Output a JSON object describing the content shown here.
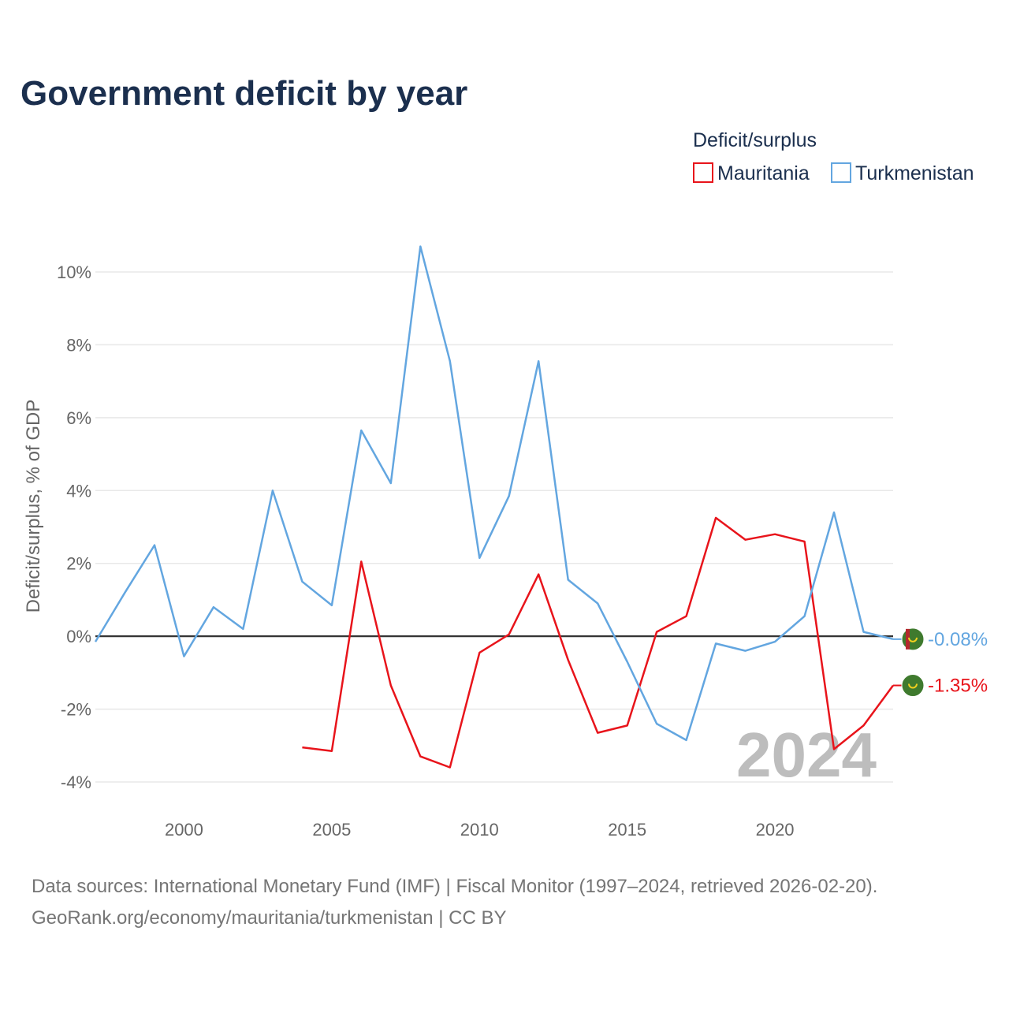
{
  "title": "Government deficit by year",
  "legend": {
    "title": "Deficit/surplus",
    "items": [
      {
        "name": "Mauritania",
        "color": "#e8141b"
      },
      {
        "name": "Turkmenistan",
        "color": "#63a6e0"
      }
    ]
  },
  "year_marker": "2024",
  "source": {
    "line1": "Data sources: International Monetary Fund (IMF) | Fiscal Monitor (1997–2024, retrieved 2026-02-20).",
    "line2": "GeoRank.org/economy/mauritania/turkmenistan | CC BY"
  },
  "chart_data": {
    "type": "line",
    "title": "Government deficit by year",
    "xlabel": "",
    "ylabel": "Deficit/surplus, % of GDP",
    "xlim": [
      1997,
      2024
    ],
    "ylim": [
      -4.6,
      10.8
    ],
    "x_ticks": [
      2000,
      2005,
      2010,
      2015,
      2020
    ],
    "y_ticks": [
      {
        "value": 10,
        "label": "10%"
      },
      {
        "value": 8,
        "label": "8%"
      },
      {
        "value": 6,
        "label": "6%"
      },
      {
        "value": 4,
        "label": "4%"
      },
      {
        "value": 2,
        "label": "2%"
      },
      {
        "value": 0,
        "label": "0%"
      },
      {
        "value": -2,
        "label": "-2%"
      },
      {
        "value": -4,
        "label": "-4%"
      }
    ],
    "series": [
      {
        "name": "Mauritania",
        "color": "#e8141b",
        "x": [
          2004,
          2005,
          2006,
          2007,
          2008,
          2009,
          2010,
          2011,
          2012,
          2013,
          2014,
          2015,
          2016,
          2017,
          2018,
          2019,
          2020,
          2021,
          2022,
          2023,
          2024
        ],
        "values": [
          -3.05,
          -3.15,
          2.05,
          -1.35,
          -3.3,
          -3.6,
          -0.45,
          0.05,
          1.7,
          -0.65,
          -2.65,
          -2.45,
          0.12,
          0.55,
          3.25,
          2.65,
          2.8,
          2.6,
          -3.1,
          -2.45,
          -1.35
        ],
        "end_label": "-1.35%"
      },
      {
        "name": "Turkmenistan",
        "color": "#63a6e0",
        "x": [
          1997,
          1998,
          1999,
          2000,
          2001,
          2002,
          2003,
          2004,
          2005,
          2006,
          2007,
          2008,
          2009,
          2010,
          2011,
          2012,
          2013,
          2014,
          2015,
          2016,
          2017,
          2018,
          2019,
          2020,
          2021,
          2022,
          2023,
          2024
        ],
        "values": [
          -0.15,
          1.2,
          2.5,
          -0.55,
          0.8,
          0.2,
          4.0,
          1.5,
          0.85,
          5.65,
          4.2,
          10.7,
          7.55,
          2.15,
          3.85,
          7.55,
          1.55,
          0.9,
          -0.7,
          -2.4,
          -2.85,
          -0.2,
          -0.4,
          -0.15,
          0.55,
          3.4,
          0.12,
          -0.08
        ],
        "end_label": "-0.08%"
      }
    ]
  }
}
